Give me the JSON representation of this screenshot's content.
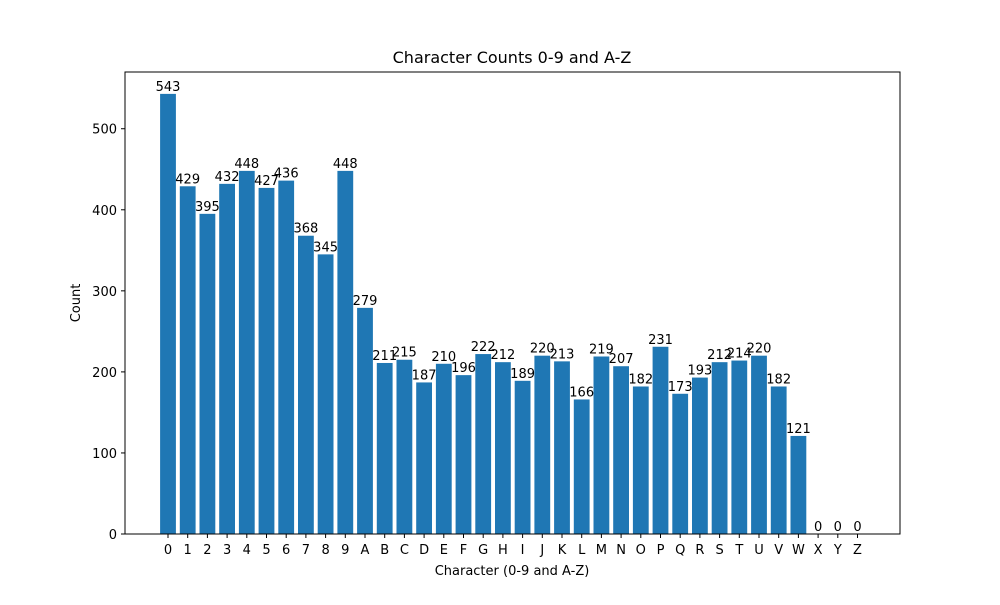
{
  "chart_data": {
    "type": "bar",
    "title": "Character Counts 0-9 and A-Z",
    "xlabel": "Character (0-9 and A-Z)",
    "ylabel": "Count",
    "ylim": [
      0,
      570
    ],
    "yticks": [
      0,
      100,
      200,
      300,
      400,
      500
    ],
    "grid": false,
    "color": "#1f77b4",
    "categories": [
      "0",
      "1",
      "2",
      "3",
      "4",
      "5",
      "6",
      "7",
      "8",
      "9",
      "A",
      "B",
      "C",
      "D",
      "E",
      "F",
      "G",
      "H",
      "I",
      "J",
      "K",
      "L",
      "M",
      "N",
      "O",
      "P",
      "Q",
      "R",
      "S",
      "T",
      "U",
      "V",
      "W",
      "X",
      "Y",
      "Z"
    ],
    "values": [
      543,
      429,
      395,
      432,
      448,
      427,
      436,
      368,
      345,
      448,
      279,
      211,
      215,
      187,
      210,
      196,
      222,
      212,
      189,
      220,
      213,
      166,
      219,
      207,
      182,
      231,
      173,
      193,
      212,
      214,
      220,
      182,
      121,
      0,
      0,
      0
    ]
  }
}
